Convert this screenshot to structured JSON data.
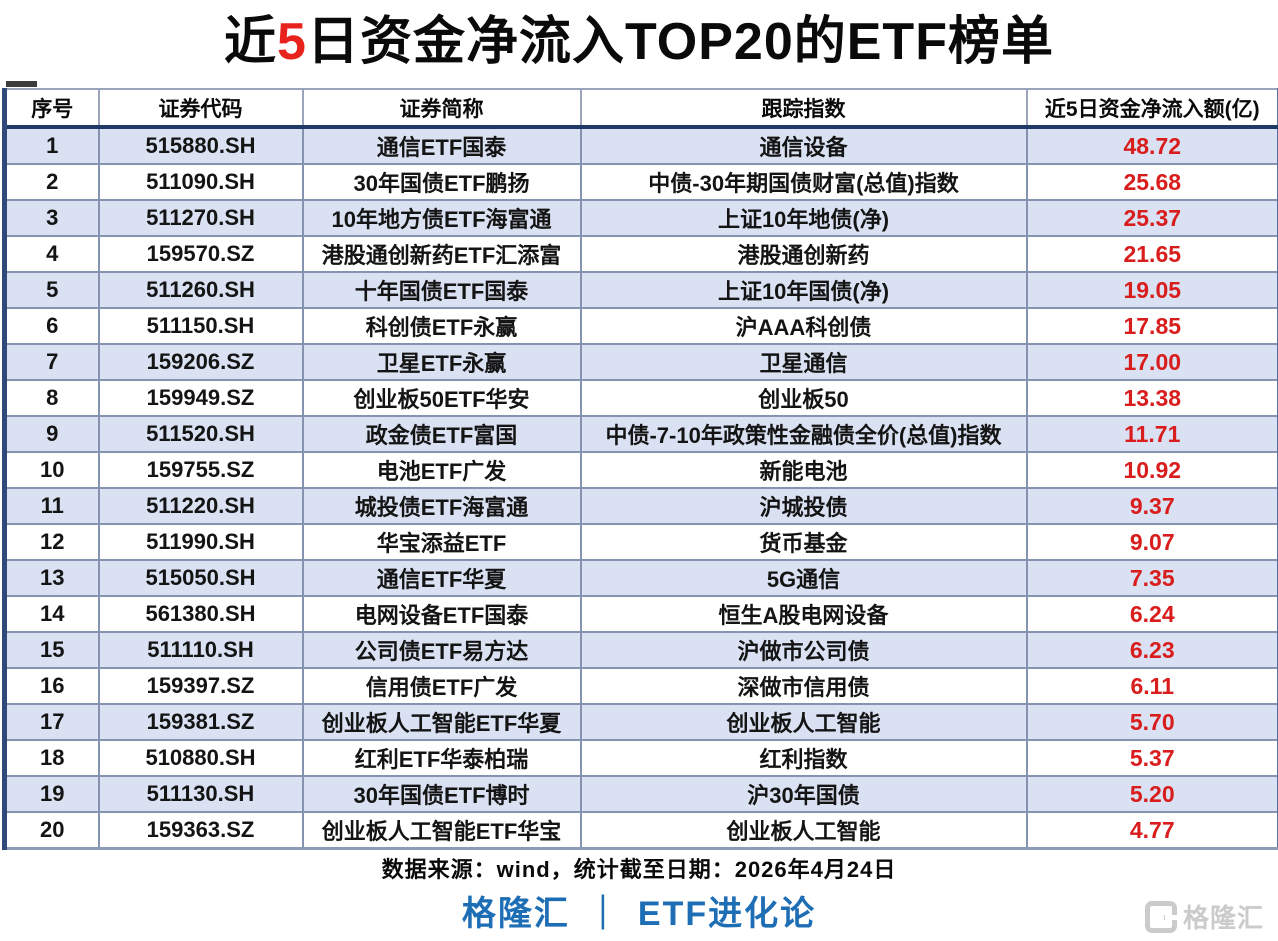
{
  "title": {
    "part1": "近",
    "part2_red": "5",
    "part3": "日资金净流入TOP20的ETF榜单"
  },
  "chart_data": {
    "type": "table",
    "title": "近5日资金净流入TOP20的ETF榜单",
    "columns": [
      "序号",
      "证券代码",
      "证券简称",
      "跟踪指数",
      "近5日资金净流入额(亿)"
    ],
    "rows": [
      [
        "1",
        "515880.SH",
        "通信ETF国泰",
        "通信设备",
        "48.72"
      ],
      [
        "2",
        "511090.SH",
        "30年国债ETF鹏扬",
        "中债-30年期国债财富(总值)指数",
        "25.68"
      ],
      [
        "3",
        "511270.SH",
        "10年地方债ETF海富通",
        "上证10年地债(净)",
        "25.37"
      ],
      [
        "4",
        "159570.SZ",
        "港股通创新药ETF汇添富",
        "港股通创新药",
        "21.65"
      ],
      [
        "5",
        "511260.SH",
        "十年国债ETF国泰",
        "上证10年国债(净)",
        "19.05"
      ],
      [
        "6",
        "511150.SH",
        "科创债ETF永赢",
        "沪AAA科创债",
        "17.85"
      ],
      [
        "7",
        "159206.SZ",
        "卫星ETF永赢",
        "卫星通信",
        "17.00"
      ],
      [
        "8",
        "159949.SZ",
        "创业板50ETF华安",
        "创业板50",
        "13.38"
      ],
      [
        "9",
        "511520.SH",
        "政金债ETF富国",
        "中债-7-10年政策性金融债全价(总值)指数",
        "11.71"
      ],
      [
        "10",
        "159755.SZ",
        "电池ETF广发",
        "新能电池",
        "10.92"
      ],
      [
        "11",
        "511220.SH",
        "城投债ETF海富通",
        "沪城投债",
        "9.37"
      ],
      [
        "12",
        "511990.SH",
        "华宝添益ETF",
        "货币基金",
        "9.07"
      ],
      [
        "13",
        "515050.SH",
        "通信ETF华夏",
        "5G通信",
        "7.35"
      ],
      [
        "14",
        "561380.SH",
        "电网设备ETF国泰",
        "恒生A股电网设备",
        "6.24"
      ],
      [
        "15",
        "511110.SH",
        "公司债ETF易方达",
        "沪做市公司债",
        "6.23"
      ],
      [
        "16",
        "159397.SZ",
        "信用债ETF广发",
        "深做市信用债",
        "6.11"
      ],
      [
        "17",
        "159381.SZ",
        "创业板人工智能ETF华夏",
        "创业板人工智能",
        "5.70"
      ],
      [
        "18",
        "510880.SH",
        "红利ETF华泰柏瑞",
        "红利指数",
        "5.37"
      ],
      [
        "19",
        "511130.SH",
        "30年国债ETF博时",
        "沪30年国债",
        "5.20"
      ],
      [
        "20",
        "159363.SZ",
        "创业板人工智能ETF华宝",
        "创业板人工智能",
        "4.77"
      ]
    ]
  },
  "footer": {
    "source_note": "数据来源：wind，统计截至日期：2026年4月24日",
    "brand_left": "格隆汇",
    "brand_separator": "｜",
    "brand_right": "ETF进化论",
    "watermark_text": "格隆汇"
  },
  "colors": {
    "title_highlight_red": "#e8231d",
    "value_red": "#d91d1d",
    "row_alt_blue": "#d9e1f2",
    "grid_slate": "#8593b1",
    "outer_border_navy": "#31497a",
    "header_divider_navy": "#203a66",
    "brand_blue": "#1e6eb5",
    "watermark_gray": "#cbcbcb"
  }
}
